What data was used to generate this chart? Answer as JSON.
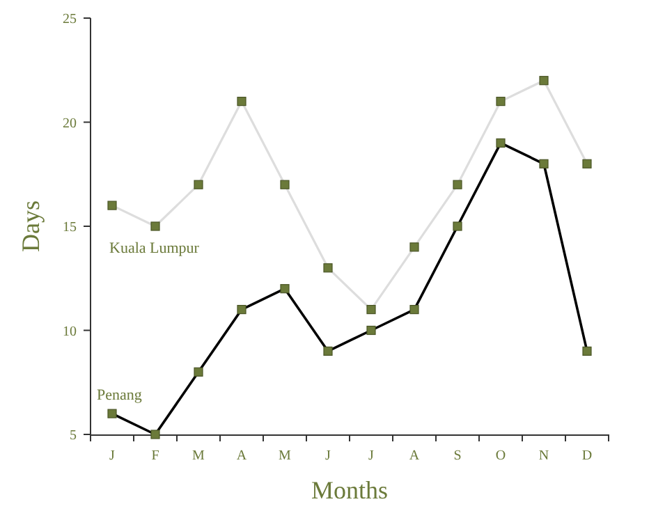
{
  "chart_data": {
    "type": "line",
    "xlabel": "Months",
    "ylabel": "Days",
    "categories": [
      "J",
      "F",
      "M",
      "A",
      "M",
      "J",
      "J",
      "A",
      "S",
      "O",
      "N",
      "D"
    ],
    "series": [
      {
        "name": "Kuala Lumpur",
        "color": "#dddddd",
        "values": [
          16,
          15,
          17,
          21,
          17,
          13,
          11,
          14,
          17,
          21,
          22,
          18
        ]
      },
      {
        "name": "Penang",
        "color": "#000000",
        "values": [
          6,
          5,
          8,
          11,
          12,
          9,
          10,
          11,
          15,
          19,
          18,
          9
        ]
      }
    ],
    "ylim": [
      5,
      25
    ],
    "yticks": [
      5,
      10,
      15,
      20,
      25
    ],
    "grid": false,
    "marker": "square",
    "line_style": "solid"
  }
}
